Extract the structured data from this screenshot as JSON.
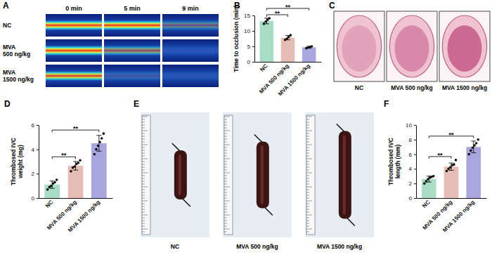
{
  "panel_labels": [
    "A",
    "B",
    "C",
    "D",
    "E",
    "F"
  ],
  "image_panels": {
    "A": {
      "columns": [
        "0 min",
        "5 min",
        "9 min"
      ],
      "rows": [
        "NC",
        "MVA\n500 ng/kg",
        "MVA\n1500 ng/kg"
      ]
    },
    "C": {
      "labels": [
        "NC",
        "MVA 500 ng/kg",
        "MVA 1500 ng/kg"
      ]
    },
    "E": {
      "labels": [
        "NC",
        "MVA 500 ng/kg",
        "MVA 1500 ng/kg"
      ]
    }
  },
  "chart_data": [
    {
      "type": "bar",
      "y_label": "Time to occlusion (min)",
      "categories": [
        "NC",
        "MVA 500 ng/kg",
        "MVA 1500 ng/kg"
      ],
      "values": [
        13.2,
        7.8,
        4.7
      ],
      "errors": [
        0.9,
        0.7,
        0.3
      ],
      "points": [
        [
          12.3,
          13.0,
          13.6,
          14.1
        ],
        [
          7.1,
          7.5,
          8.0,
          8.6
        ],
        [
          4.4,
          4.6,
          4.8,
          5.0
        ]
      ],
      "colors": [
        "#a9dcc4",
        "#e6bdb4",
        "#a9a6df"
      ],
      "ylim": [
        0,
        15
      ],
      "yticks": [
        0,
        5,
        10,
        15
      ],
      "annotations": [
        {
          "pair": [
            "NC",
            "MVA 500 ng/kg"
          ],
          "text": "**"
        },
        {
          "pair": [
            "NC",
            "MVA 1500 ng/kg"
          ],
          "text": "**"
        }
      ]
    },
    {
      "type": "bar",
      "y_label": "Thrombosed IVC\nweight (mg)",
      "categories": [
        "NC",
        "MVA 500 ng/kg",
        "MVA 1500 ng/kg"
      ],
      "values": [
        1.1,
        2.65,
        4.5
      ],
      "errors": [
        0.3,
        0.35,
        0.65
      ],
      "points": [
        [
          0.7,
          0.9,
          1.0,
          1.2,
          1.3,
          1.5
        ],
        [
          2.2,
          2.5,
          2.6,
          2.8,
          2.9,
          3.1
        ],
        [
          3.6,
          4.0,
          4.3,
          4.6,
          4.9,
          5.3
        ]
      ],
      "colors": [
        "#a9dcc4",
        "#e6bdb4",
        "#a9a6df"
      ],
      "ylim": [
        0,
        6
      ],
      "yticks": [
        0,
        2,
        4,
        6
      ],
      "annotations": [
        {
          "pair": [
            "NC",
            "MVA 500 ng/kg"
          ],
          "text": "**"
        },
        {
          "pair": [
            "NC",
            "MVA 1500 ng/kg"
          ],
          "text": "**"
        }
      ]
    },
    {
      "type": "bar",
      "y_label": "Thrombosed IVC\nlength (mm)",
      "categories": [
        "NC",
        "MVA 500 ng/kg",
        "MVA 1500 ng/kg"
      ],
      "values": [
        2.6,
        4.3,
        7.0
      ],
      "errors": [
        0.4,
        0.5,
        0.8
      ],
      "points": [
        [
          2.0,
          2.3,
          2.6,
          2.8,
          2.9,
          3.0
        ],
        [
          3.7,
          4.0,
          4.2,
          4.5,
          4.6,
          5.2
        ],
        [
          6.0,
          6.5,
          6.9,
          7.2,
          7.5,
          8.0
        ]
      ],
      "colors": [
        "#a9dcc4",
        "#e6bdb4",
        "#a9a6df"
      ],
      "ylim": [
        0,
        10
      ],
      "yticks": [
        0,
        2,
        4,
        6,
        8,
        10
      ],
      "annotations": [
        {
          "pair": [
            "NC",
            "MVA 500 ng/kg"
          ],
          "text": "**"
        },
        {
          "pair": [
            "NC",
            "MVA 1500 ng/kg"
          ],
          "text": "**"
        }
      ]
    }
  ]
}
